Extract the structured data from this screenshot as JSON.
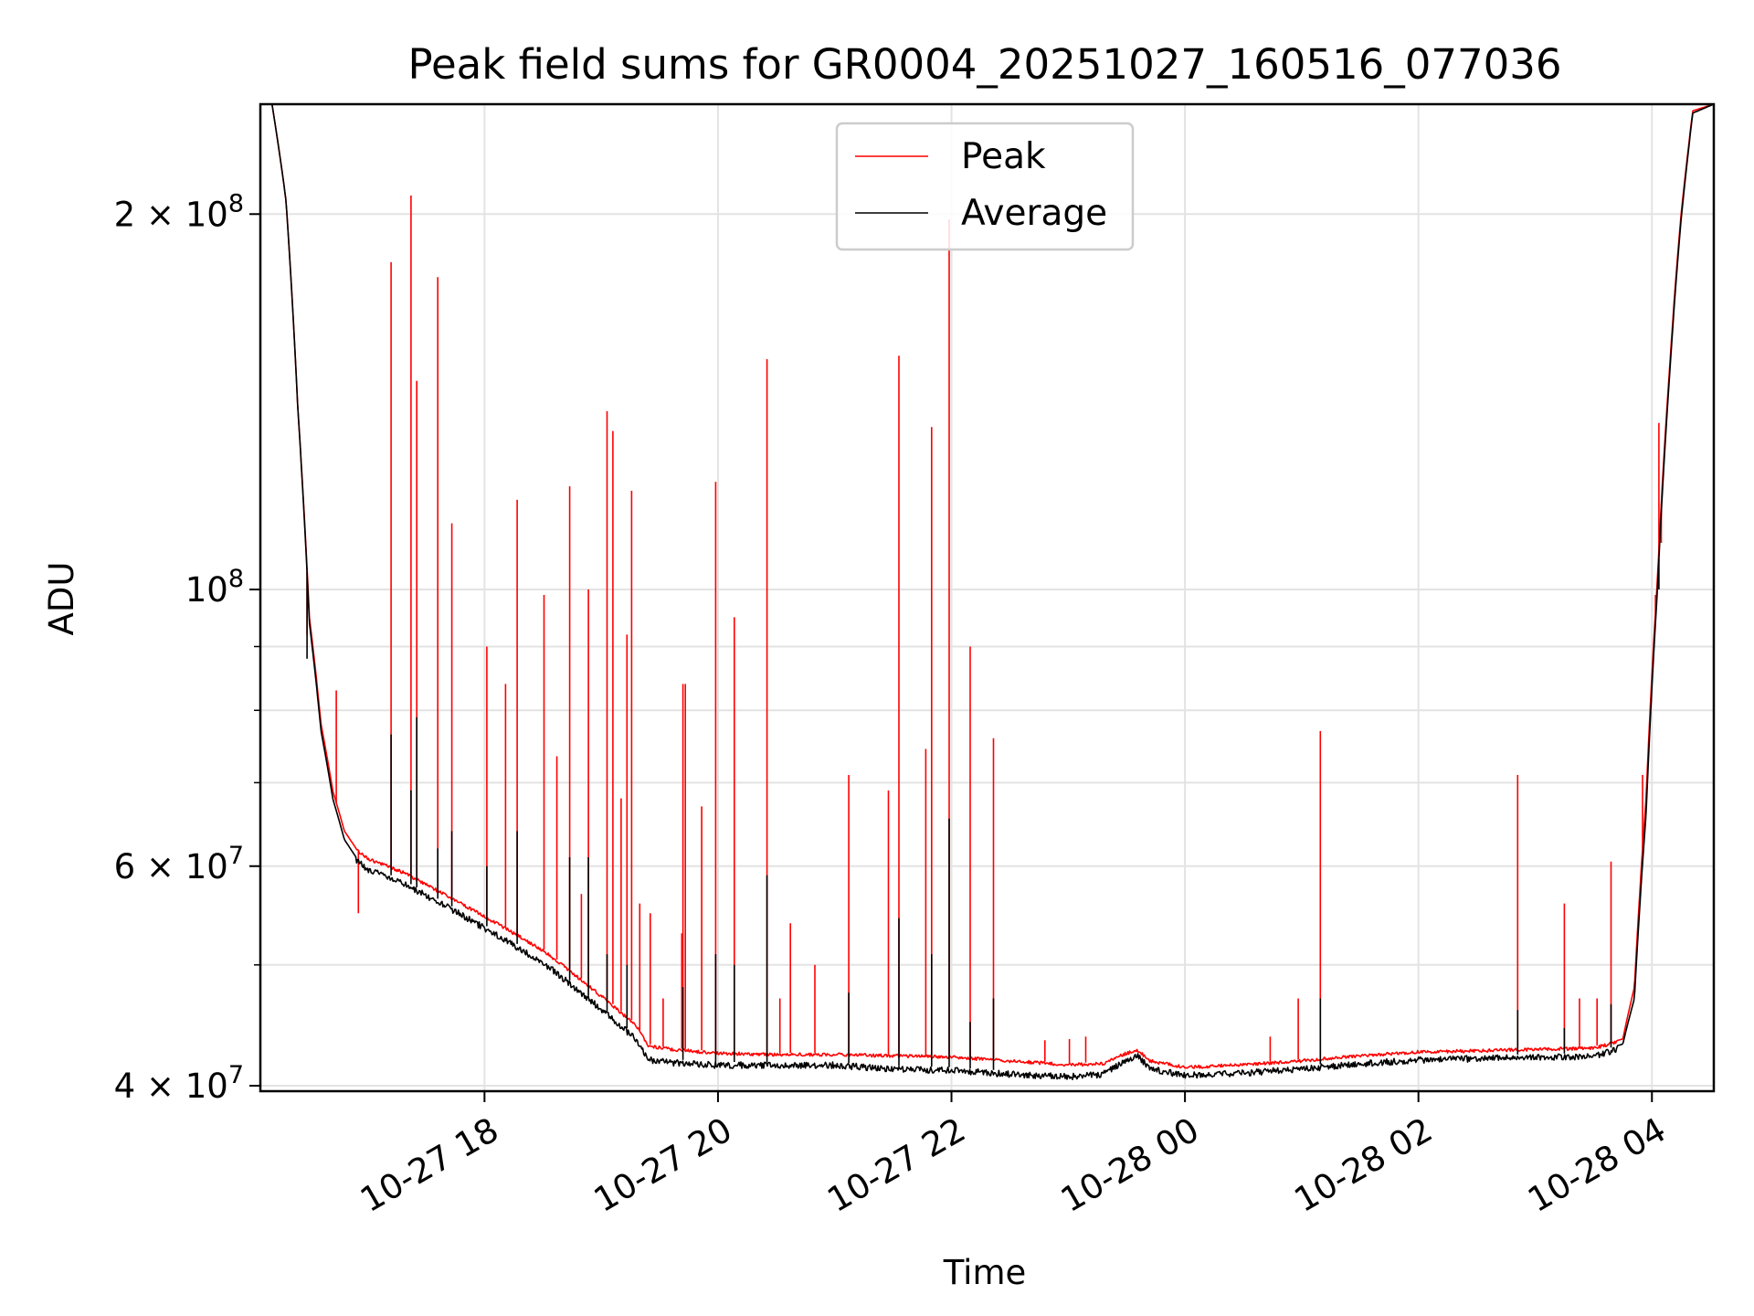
{
  "chart_data": {
    "type": "line",
    "title": "Peak field sums for GR0004_20251027_160516_077036",
    "xlabel": "Time",
    "ylabel": "ADU",
    "y_scale": "log",
    "ylim": [
      39600000,
      245000000
    ],
    "xlim_hours": [
      16.08,
      28.53
    ],
    "x_tick_labels": [
      {
        "label": "10-27 18",
        "hour": 18
      },
      {
        "label": "10-27 20",
        "hour": 20
      },
      {
        "label": "10-27 22",
        "hour": 22
      },
      {
        "label": "10-28 00",
        "hour": 24
      },
      {
        "label": "10-28 02",
        "hour": 26
      },
      {
        "label": "10-28 04",
        "hour": 28
      }
    ],
    "y_tick_labels": [
      {
        "mantissa": "2 × 10",
        "exponent": "8",
        "value": 200000000
      },
      {
        "mantissa": "10",
        "exponent": "8",
        "value": 100000000
      },
      {
        "mantissa": "6 × 10",
        "exponent": "7",
        "value": 60000000
      },
      {
        "mantissa": "4 × 10",
        "exponent": "7",
        "value": 40000000
      }
    ],
    "y_minor_gridlines": [
      50000000,
      70000000,
      80000000,
      90000000
    ],
    "grid": true,
    "legend_position": "top-center",
    "series": [
      {
        "name": "Peak",
        "color": "#ff0000",
        "baseline": [
          [
            16.08,
            245
          ],
          [
            16.18,
            245
          ],
          [
            16.3,
            205
          ],
          [
            16.4,
            140
          ],
          [
            16.5,
            95
          ],
          [
            16.6,
            78
          ],
          [
            16.7,
            69
          ],
          [
            16.8,
            64
          ],
          [
            16.9,
            62
          ],
          [
            17.0,
            61
          ],
          [
            17.3,
            59.5
          ],
          [
            17.6,
            57.5
          ],
          [
            17.9,
            55.5
          ],
          [
            18.2,
            53.5
          ],
          [
            18.5,
            51.5
          ],
          [
            18.8,
            49
          ],
          [
            19.1,
            46.5
          ],
          [
            19.3,
            44.8
          ],
          [
            19.4,
            43.2
          ],
          [
            19.6,
            42.9
          ],
          [
            20.0,
            42.6
          ],
          [
            20.5,
            42.5
          ],
          [
            21.0,
            42.5
          ],
          [
            21.5,
            42.4
          ],
          [
            22.0,
            42.3
          ],
          [
            22.5,
            42.0
          ],
          [
            23.0,
            41.7
          ],
          [
            23.3,
            41.8
          ],
          [
            23.5,
            42.6
          ],
          [
            23.6,
            42.8
          ],
          [
            23.7,
            42.0
          ],
          [
            24.0,
            41.5
          ],
          [
            24.5,
            41.7
          ],
          [
            25.0,
            42.0
          ],
          [
            25.5,
            42.4
          ],
          [
            26.0,
            42.7
          ],
          [
            26.5,
            42.8
          ],
          [
            27.0,
            42.9
          ],
          [
            27.5,
            43.0
          ],
          [
            27.75,
            43.6
          ],
          [
            27.85,
            48
          ],
          [
            27.95,
            68
          ],
          [
            28.05,
            103
          ],
          [
            28.15,
            150
          ],
          [
            28.25,
            200
          ],
          [
            28.35,
            242
          ],
          [
            28.53,
            245
          ]
        ],
        "spikes": [
          [
            16.48,
            92
          ],
          [
            16.73,
            83
          ],
          [
            16.92,
            55
          ],
          [
            17.2,
            183
          ],
          [
            17.37,
            207
          ],
          [
            17.42,
            147
          ],
          [
            17.6,
            178
          ],
          [
            17.72,
            113
          ],
          [
            18.02,
            90
          ],
          [
            18.18,
            84
          ],
          [
            18.28,
            118
          ],
          [
            18.51,
            99
          ],
          [
            18.62,
            73.5
          ],
          [
            18.73,
            121
          ],
          [
            18.83,
            57
          ],
          [
            18.89,
            100
          ],
          [
            19.05,
            139
          ],
          [
            19.1,
            134
          ],
          [
            19.17,
            68
          ],
          [
            19.22,
            92
          ],
          [
            19.26,
            120
          ],
          [
            19.33,
            56
          ],
          [
            19.42,
            55
          ],
          [
            19.53,
            47
          ],
          [
            19.69,
            53
          ],
          [
            19.7,
            84
          ],
          [
            19.72,
            84
          ],
          [
            19.86,
            67
          ],
          [
            19.98,
            122
          ],
          [
            20.14,
            95
          ],
          [
            20.42,
            153
          ],
          [
            20.53,
            47
          ],
          [
            20.62,
            54
          ],
          [
            20.83,
            50
          ],
          [
            21.12,
            71
          ],
          [
            21.46,
            69
          ],
          [
            21.55,
            154
          ],
          [
            21.78,
            74.5
          ],
          [
            21.83,
            135
          ],
          [
            21.98,
            198
          ],
          [
            22.16,
            90
          ],
          [
            22.36,
            76
          ],
          [
            22.8,
            43.5
          ],
          [
            23.01,
            43.6
          ],
          [
            23.15,
            43.8
          ],
          [
            24.73,
            43.8
          ],
          [
            24.97,
            47
          ],
          [
            25.16,
            77
          ],
          [
            26.85,
            71
          ],
          [
            27.25,
            56
          ],
          [
            27.38,
            47
          ],
          [
            27.53,
            47
          ],
          [
            27.65,
            60.5
          ],
          [
            27.92,
            71
          ],
          [
            28.03,
            99
          ],
          [
            28.06,
            136
          ],
          [
            28.08,
            109
          ]
        ]
      },
      {
        "name": "Average",
        "color": "#000000",
        "baseline": [
          [
            16.08,
            245
          ],
          [
            16.18,
            245
          ],
          [
            16.3,
            205
          ],
          [
            16.4,
            140
          ],
          [
            16.5,
            94
          ],
          [
            16.6,
            77
          ],
          [
            16.7,
            68
          ],
          [
            16.8,
            63
          ],
          [
            16.9,
            61
          ],
          [
            17.0,
            60
          ],
          [
            17.3,
            58.5
          ],
          [
            17.6,
            56.5
          ],
          [
            17.9,
            54.5
          ],
          [
            18.2,
            52.5
          ],
          [
            18.5,
            50.5
          ],
          [
            18.8,
            48
          ],
          [
            19.1,
            45.5
          ],
          [
            19.3,
            43.8
          ],
          [
            19.4,
            42.2
          ],
          [
            19.6,
            42.0
          ],
          [
            20.0,
            41.8
          ],
          [
            20.5,
            41.8
          ],
          [
            21.0,
            41.8
          ],
          [
            21.5,
            41.5
          ],
          [
            22.0,
            41.4
          ],
          [
            22.5,
            41.1
          ],
          [
            23.0,
            40.9
          ],
          [
            23.3,
            41.1
          ],
          [
            23.5,
            42.2
          ],
          [
            23.6,
            42.5
          ],
          [
            23.7,
            41.5
          ],
          [
            24.0,
            41.0
          ],
          [
            24.5,
            41.2
          ],
          [
            25.0,
            41.5
          ],
          [
            25.5,
            41.9
          ],
          [
            26.0,
            42.2
          ],
          [
            26.5,
            42.3
          ],
          [
            27.0,
            42.4
          ],
          [
            27.5,
            42.5
          ],
          [
            27.75,
            43.2
          ],
          [
            27.85,
            47
          ],
          [
            27.95,
            66
          ],
          [
            28.05,
            101
          ],
          [
            28.15,
            148
          ],
          [
            28.25,
            198
          ],
          [
            28.35,
            241
          ],
          [
            28.53,
            245
          ]
        ],
        "spikes": [
          [
            16.48,
            88
          ],
          [
            17.2,
            76.5
          ],
          [
            17.37,
            69
          ],
          [
            17.42,
            79
          ],
          [
            17.6,
            62
          ],
          [
            17.72,
            64
          ],
          [
            18.02,
            60
          ],
          [
            18.28,
            64
          ],
          [
            18.73,
            61
          ],
          [
            18.89,
            61
          ],
          [
            19.05,
            51
          ],
          [
            19.22,
            50
          ],
          [
            19.7,
            48
          ],
          [
            19.98,
            51
          ],
          [
            20.14,
            50
          ],
          [
            20.42,
            59
          ],
          [
            21.12,
            47.5
          ],
          [
            21.55,
            54.5
          ],
          [
            21.83,
            51
          ],
          [
            21.98,
            65.5
          ],
          [
            22.16,
            45
          ],
          [
            22.36,
            47
          ],
          [
            25.16,
            47
          ],
          [
            26.85,
            46
          ],
          [
            27.25,
            44.5
          ],
          [
            27.65,
            46.5
          ],
          [
            28.06,
            100
          ]
        ]
      }
    ]
  }
}
